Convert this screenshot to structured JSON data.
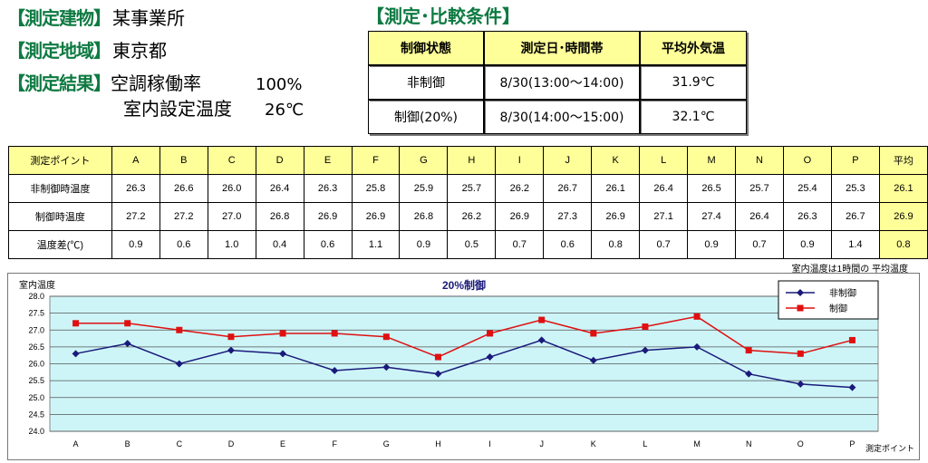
{
  "header": {
    "building_label": "【測定建物】",
    "building_value": "某事業所",
    "area_label": "【測定地域】",
    "area_value": "東京都",
    "result_label": "【測定結果】",
    "ac_rate_label": "空調稼働率",
    "ac_rate_value": "100%",
    "setpoint_label": "室内設定温度",
    "setpoint_value": "26℃"
  },
  "conditions": {
    "title": "【測定･比較条件】",
    "headers": [
      "制御状態",
      "測定日･時間帯",
      "平均外気温"
    ],
    "rows": [
      [
        "非制御",
        "8/30(13:00～14:00)",
        "31.9℃"
      ],
      [
        "制御(20%)",
        "8/30(14:00～15:00)",
        "32.1℃"
      ]
    ]
  },
  "table": {
    "corner": "測定ポイント",
    "columns": [
      "A",
      "B",
      "C",
      "D",
      "E",
      "F",
      "G",
      "H",
      "I",
      "J",
      "K",
      "L",
      "M",
      "N",
      "O",
      "P",
      "平均"
    ],
    "rows": [
      {
        "label": "非制御時温度",
        "values": [
          "26.3",
          "26.6",
          "26.0",
          "26.4",
          "26.3",
          "25.8",
          "25.9",
          "25.7",
          "26.2",
          "26.7",
          "26.1",
          "26.4",
          "26.5",
          "25.7",
          "25.4",
          "25.3",
          "26.1"
        ]
      },
      {
        "label": "制御時温度",
        "values": [
          "27.2",
          "27.2",
          "27.0",
          "26.8",
          "26.9",
          "26.9",
          "26.8",
          "26.2",
          "26.9",
          "27.3",
          "26.9",
          "27.1",
          "27.4",
          "26.4",
          "26.3",
          "26.7",
          "26.9"
        ]
      },
      {
        "label": "温度差(℃)",
        "values": [
          "0.9",
          "0.6",
          "1.0",
          "0.4",
          "0.6",
          "1.1",
          "0.9",
          "0.5",
          "0.7",
          "0.6",
          "0.8",
          "0.7",
          "0.9",
          "0.7",
          "0.9",
          "1.4",
          "0.8"
        ]
      }
    ],
    "note": "室内温度は1時間の 平均温度"
  },
  "chart_data": {
    "type": "line",
    "title": "20%制御",
    "ylabel": "室内温度",
    "xlabel": "測定ポイント",
    "categories": [
      "A",
      "B",
      "C",
      "D",
      "E",
      "F",
      "G",
      "H",
      "I",
      "J",
      "K",
      "L",
      "M",
      "N",
      "O",
      "P"
    ],
    "ylim": [
      24.0,
      28.0
    ],
    "yticks": [
      "24.0",
      "24.5",
      "25.0",
      "25.5",
      "26.0",
      "26.5",
      "27.0",
      "27.5",
      "28.0"
    ],
    "grid": true,
    "legend": "top-right",
    "series": [
      {
        "name": "非制御",
        "color": "#1a1a7a",
        "marker": "diamond",
        "values": [
          26.3,
          26.6,
          26.0,
          26.4,
          26.3,
          25.8,
          25.9,
          25.7,
          26.2,
          26.7,
          26.1,
          26.4,
          26.5,
          25.7,
          25.4,
          25.3
        ]
      },
      {
        "name": "制御",
        "color": "#e01010",
        "marker": "square",
        "values": [
          27.2,
          27.2,
          27.0,
          26.8,
          26.9,
          26.9,
          26.8,
          26.2,
          26.9,
          27.3,
          26.9,
          27.1,
          27.4,
          26.4,
          26.3,
          26.7
        ]
      }
    ]
  }
}
